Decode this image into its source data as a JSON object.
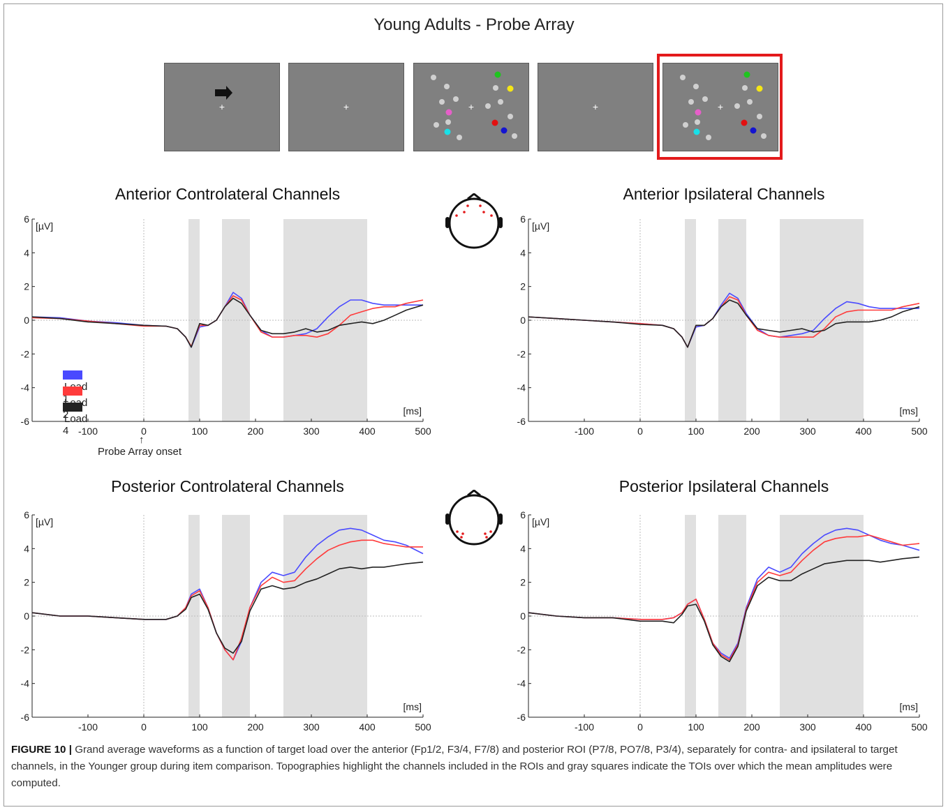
{
  "figure_title": "Young Adults - Probe Array",
  "caption": {
    "label": "FIGURE 10 |",
    "text": " Grand average waveforms as a function of target load over the anterior (Fp1/2, F3/4, F7/8) and posterior ROI (P7/8, PO7/8, P3/4), separately for contra- and ipsilateral to target channels, in the Younger group during item comparison. Topographies highlight the channels included in the ROIs and gray squares indicate the TOIs over which the mean amplitudes were computed."
  },
  "onset_annotation": "Probe Array onset",
  "colors": {
    "load1": "#4a4aff",
    "load2": "#ff3b3b",
    "load4": "#222222",
    "toi_shade": "#e0e0e0",
    "screen": "#808080",
    "highlight": "#e31a1c"
  },
  "stimulus_sequence": [
    {
      "name": "cue",
      "content": "arrow-right-icon and fixation cross"
    },
    {
      "name": "fixation-1",
      "content": "fixation cross"
    },
    {
      "name": "memory-array",
      "content": "grey and colored dots"
    },
    {
      "name": "fixation-2",
      "content": "fixation cross"
    },
    {
      "name": "probe-array",
      "content": "grey and colored dots",
      "highlighted": true
    }
  ],
  "chart_data": [
    {
      "type": "line",
      "title": "Anterior Controlateral Channels",
      "ylabel": "[µV]",
      "xlabel": "[ms]",
      "xlim": [
        -200,
        500
      ],
      "ylim": [
        -6,
        6
      ],
      "xticks": [
        -100,
        0,
        100,
        200,
        300,
        400,
        500
      ],
      "yticks": [
        -6,
        -4,
        -2,
        0,
        2,
        4,
        6
      ],
      "shaded_intervals_ms": [
        [
          80,
          100
        ],
        [
          140,
          190
        ],
        [
          250,
          400
        ]
      ],
      "legend": [
        "Load 1",
        "Load 2",
        "Load 4"
      ],
      "legend_position": "bottom-left",
      "x": [
        -200,
        -150,
        -100,
        -50,
        0,
        40,
        60,
        75,
        85,
        100,
        115,
        130,
        145,
        160,
        175,
        190,
        210,
        230,
        250,
        270,
        290,
        310,
        330,
        350,
        370,
        390,
        410,
        430,
        450,
        470,
        500
      ],
      "series": [
        {
          "name": "Load 1",
          "values": [
            0.2,
            0.15,
            -0.05,
            -0.15,
            -0.3,
            -0.35,
            -0.5,
            -1.0,
            -1.6,
            -0.4,
            -0.3,
            0.0,
            0.8,
            1.65,
            1.3,
            0.3,
            -0.6,
            -1.0,
            -1.0,
            -0.9,
            -0.8,
            -0.5,
            0.2,
            0.8,
            1.2,
            1.2,
            1.0,
            0.9,
            0.9,
            0.9,
            0.9
          ]
        },
        {
          "name": "Load 2",
          "values": [
            0.15,
            0.1,
            -0.05,
            -0.2,
            -0.35,
            -0.35,
            -0.5,
            -1.0,
            -1.55,
            -0.3,
            -0.3,
            0.0,
            0.8,
            1.45,
            1.2,
            0.3,
            -0.7,
            -1.0,
            -1.0,
            -0.9,
            -0.9,
            -1.0,
            -0.8,
            -0.3,
            0.3,
            0.5,
            0.7,
            0.8,
            0.8,
            1.0,
            1.2
          ]
        },
        {
          "name": "Load 4",
          "values": [
            0.2,
            0.1,
            -0.1,
            -0.2,
            -0.3,
            -0.35,
            -0.5,
            -1.0,
            -1.6,
            -0.2,
            -0.3,
            0.0,
            0.8,
            1.3,
            1.0,
            0.3,
            -0.6,
            -0.8,
            -0.8,
            -0.7,
            -0.5,
            -0.7,
            -0.6,
            -0.3,
            -0.2,
            -0.1,
            -0.2,
            0.0,
            0.3,
            0.6,
            0.9
          ]
        }
      ]
    },
    {
      "type": "line",
      "title": "Anterior Ipsilateral Channels",
      "ylabel": "[µV]",
      "xlabel": "[ms]",
      "xlim": [
        -200,
        500
      ],
      "ylim": [
        -6,
        6
      ],
      "xticks": [
        -100,
        0,
        100,
        200,
        300,
        400,
        500
      ],
      "yticks": [
        -6,
        -4,
        -2,
        0,
        2,
        4,
        6
      ],
      "shaded_intervals_ms": [
        [
          80,
          100
        ],
        [
          140,
          190
        ],
        [
          250,
          400
        ]
      ],
      "x": [
        -200,
        -150,
        -100,
        -50,
        0,
        40,
        60,
        75,
        85,
        100,
        115,
        130,
        145,
        160,
        175,
        190,
        210,
        230,
        250,
        270,
        290,
        310,
        330,
        350,
        370,
        390,
        410,
        430,
        450,
        470,
        500
      ],
      "series": [
        {
          "name": "Load 1",
          "values": [
            0.2,
            0.1,
            0.0,
            -0.1,
            -0.2,
            -0.3,
            -0.5,
            -1.0,
            -1.6,
            -0.4,
            -0.3,
            0.1,
            0.9,
            1.6,
            1.3,
            0.4,
            -0.5,
            -0.9,
            -1.0,
            -0.9,
            -0.8,
            -0.6,
            0.1,
            0.7,
            1.1,
            1.0,
            0.8,
            0.7,
            0.7,
            0.7,
            0.7
          ]
        },
        {
          "name": "Load 2",
          "values": [
            0.2,
            0.1,
            0.0,
            -0.1,
            -0.2,
            -0.3,
            -0.5,
            -1.0,
            -1.6,
            -0.3,
            -0.3,
            0.1,
            0.8,
            1.4,
            1.2,
            0.3,
            -0.6,
            -0.9,
            -1.0,
            -1.0,
            -1.0,
            -1.0,
            -0.5,
            0.2,
            0.5,
            0.6,
            0.6,
            0.6,
            0.6,
            0.8,
            1.0
          ]
        },
        {
          "name": "Load 4",
          "values": [
            0.2,
            0.1,
            0.0,
            -0.1,
            -0.25,
            -0.3,
            -0.5,
            -1.0,
            -1.6,
            -0.3,
            -0.3,
            0.1,
            0.8,
            1.2,
            1.0,
            0.3,
            -0.5,
            -0.6,
            -0.7,
            -0.6,
            -0.5,
            -0.7,
            -0.6,
            -0.2,
            -0.1,
            -0.1,
            -0.1,
            0.0,
            0.2,
            0.5,
            0.8
          ]
        }
      ]
    },
    {
      "type": "line",
      "title": "Posterior Controlateral Channels",
      "ylabel": "[µV]",
      "xlabel": "[ms]",
      "xlim": [
        -200,
        500
      ],
      "ylim": [
        -6,
        6
      ],
      "xticks": [
        -100,
        0,
        100,
        200,
        300,
        400,
        500
      ],
      "yticks": [
        -6,
        -4,
        -2,
        0,
        2,
        4,
        6
      ],
      "shaded_intervals_ms": [
        [
          80,
          100
        ],
        [
          140,
          190
        ],
        [
          250,
          400
        ]
      ],
      "x": [
        -200,
        -150,
        -100,
        -50,
        0,
        40,
        60,
        75,
        85,
        100,
        115,
        130,
        145,
        160,
        175,
        190,
        210,
        230,
        250,
        270,
        290,
        310,
        330,
        350,
        370,
        390,
        410,
        430,
        450,
        470,
        500
      ],
      "series": [
        {
          "name": "Load 1",
          "values": [
            0.2,
            0.0,
            0.0,
            -0.1,
            -0.2,
            -0.2,
            0.0,
            0.5,
            1.3,
            1.6,
            0.5,
            -1.0,
            -2.0,
            -2.6,
            -1.5,
            0.5,
            2.0,
            2.6,
            2.4,
            2.6,
            3.5,
            4.2,
            4.7,
            5.1,
            5.2,
            5.1,
            4.8,
            4.5,
            4.4,
            4.2,
            3.7
          ]
        },
        {
          "name": "Load 2",
          "values": [
            0.2,
            0.0,
            0.0,
            -0.1,
            -0.2,
            -0.2,
            0.0,
            0.5,
            1.2,
            1.5,
            0.5,
            -1.0,
            -2.0,
            -2.6,
            -1.3,
            0.5,
            1.8,
            2.3,
            2.0,
            2.1,
            2.8,
            3.4,
            3.9,
            4.2,
            4.4,
            4.5,
            4.5,
            4.3,
            4.2,
            4.1,
            4.1
          ]
        },
        {
          "name": "Load 4",
          "values": [
            0.2,
            0.0,
            0.0,
            -0.1,
            -0.2,
            -0.2,
            0.0,
            0.4,
            1.1,
            1.3,
            0.4,
            -1.0,
            -1.9,
            -2.2,
            -1.5,
            0.3,
            1.6,
            1.8,
            1.6,
            1.7,
            2.0,
            2.2,
            2.5,
            2.8,
            2.9,
            2.8,
            2.9,
            2.9,
            3.0,
            3.1,
            3.2
          ]
        }
      ]
    },
    {
      "type": "line",
      "title": "Posterior Ipsilateral Channels",
      "ylabel": "[µV]",
      "xlabel": "[ms]",
      "xlim": [
        -200,
        500
      ],
      "ylim": [
        -6,
        6
      ],
      "xticks": [
        -100,
        0,
        100,
        200,
        300,
        400,
        500
      ],
      "yticks": [
        -6,
        -4,
        -2,
        0,
        2,
        4,
        6
      ],
      "shaded_intervals_ms": [
        [
          80,
          100
        ],
        [
          140,
          190
        ],
        [
          250,
          400
        ]
      ],
      "x": [
        -200,
        -150,
        -100,
        -50,
        0,
        40,
        60,
        75,
        85,
        100,
        115,
        130,
        145,
        160,
        175,
        190,
        210,
        230,
        250,
        270,
        290,
        310,
        330,
        350,
        370,
        390,
        410,
        430,
        450,
        470,
        500
      ],
      "series": [
        {
          "name": "Load 1",
          "values": [
            0.2,
            0.0,
            -0.1,
            -0.1,
            -0.2,
            -0.2,
            -0.1,
            0.2,
            0.7,
            1.0,
            -0.2,
            -1.6,
            -2.2,
            -2.5,
            -1.6,
            0.5,
            2.2,
            2.9,
            2.6,
            2.9,
            3.7,
            4.3,
            4.8,
            5.1,
            5.2,
            5.1,
            4.8,
            4.5,
            4.3,
            4.2,
            3.9
          ]
        },
        {
          "name": "Load 2",
          "values": [
            0.2,
            0.0,
            -0.1,
            -0.1,
            -0.2,
            -0.2,
            -0.1,
            0.2,
            0.7,
            1.0,
            -0.2,
            -1.6,
            -2.3,
            -2.6,
            -1.7,
            0.4,
            2.0,
            2.6,
            2.4,
            2.6,
            3.3,
            3.9,
            4.4,
            4.6,
            4.7,
            4.7,
            4.8,
            4.6,
            4.4,
            4.2,
            4.3
          ]
        },
        {
          "name": "Load 4",
          "values": [
            0.2,
            0.0,
            -0.1,
            -0.1,
            -0.3,
            -0.3,
            -0.4,
            0.1,
            0.6,
            0.7,
            -0.3,
            -1.7,
            -2.4,
            -2.7,
            -1.8,
            0.3,
            1.8,
            2.3,
            2.1,
            2.1,
            2.5,
            2.8,
            3.1,
            3.2,
            3.3,
            3.3,
            3.3,
            3.2,
            3.3,
            3.4,
            3.5
          ]
        }
      ]
    }
  ]
}
